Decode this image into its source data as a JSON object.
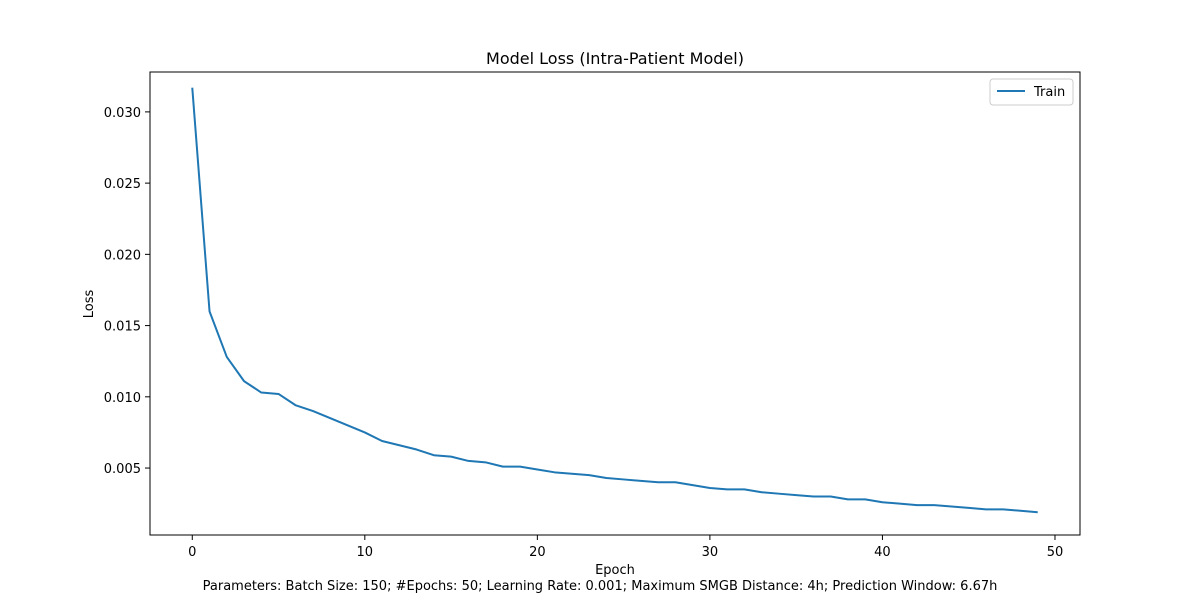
{
  "chart_data": {
    "type": "line",
    "title": "Model Loss (Intra-Patient Model)",
    "xlabel": "Epoch",
    "ylabel": "Loss",
    "xlim": [
      -2.45,
      51.45
    ],
    "ylim": [
      0.0003,
      0.0328
    ],
    "x_ticks": [
      0,
      10,
      20,
      30,
      40,
      50
    ],
    "y_ticks": [
      0.005,
      0.01,
      0.015,
      0.02,
      0.025,
      0.03
    ],
    "y_tick_labels": [
      "0.005",
      "0.010",
      "0.015",
      "0.020",
      "0.025",
      "0.030"
    ],
    "grid": false,
    "legend_position": "upper right",
    "series": [
      {
        "name": "Train",
        "color": "#1f77b4",
        "x": [
          0,
          1,
          2,
          3,
          4,
          5,
          6,
          7,
          8,
          9,
          10,
          11,
          12,
          13,
          14,
          15,
          16,
          17,
          18,
          19,
          20,
          21,
          22,
          23,
          24,
          25,
          26,
          27,
          28,
          29,
          30,
          31,
          32,
          33,
          34,
          35,
          36,
          37,
          38,
          39,
          40,
          41,
          42,
          43,
          44,
          45,
          46,
          47,
          48,
          49
        ],
        "values": [
          0.0317,
          0.016,
          0.0128,
          0.0111,
          0.0103,
          0.0102,
          0.0094,
          0.009,
          0.0085,
          0.008,
          0.0075,
          0.0069,
          0.0066,
          0.0063,
          0.0059,
          0.0058,
          0.0055,
          0.0054,
          0.0051,
          0.0051,
          0.0049,
          0.0047,
          0.0046,
          0.0045,
          0.0043,
          0.0042,
          0.0041,
          0.004,
          0.004,
          0.0038,
          0.0036,
          0.0035,
          0.0035,
          0.0033,
          0.0032,
          0.0031,
          0.003,
          0.003,
          0.0028,
          0.0028,
          0.0026,
          0.0025,
          0.0024,
          0.0024,
          0.0023,
          0.0022,
          0.0021,
          0.0021,
          0.002,
          0.0019
        ]
      }
    ]
  },
  "caption": "Parameters: Batch Size: 150; #Epochs: 50; Learning Rate: 0.001; Maximum SMGB Distance: 4h; Prediction Window: 6.67h"
}
